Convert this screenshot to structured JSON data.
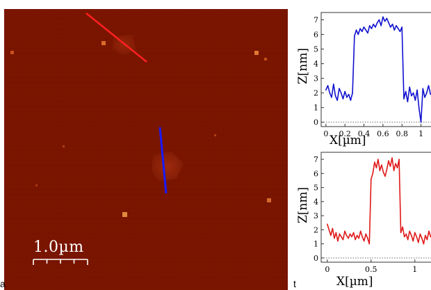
{
  "image": {
    "scale_bar_label": "1.0µm",
    "profile_line_colors": {
      "top": "#ff2020",
      "middle": "#1a1aff"
    }
  },
  "corner_text": {
    "left": "a",
    "right": "t"
  },
  "chart_data": [
    {
      "type": "line",
      "title": "",
      "xlabel": "X[µm]",
      "ylabel": "Z[nm]",
      "xlim": [
        -0.05,
        1.12
      ],
      "ylim": [
        -0.3,
        7.5
      ],
      "xticks": [
        0,
        0.2,
        0.4,
        0.6,
        0.8,
        1
      ],
      "xtick_labels": [
        "0",
        "0.2",
        "0.4",
        "0.6",
        "0.8",
        "1"
      ],
      "yticks": [
        0,
        1,
        2,
        3,
        4,
        5,
        6,
        7
      ],
      "ytick_labels": [
        "0",
        "1",
        "2",
        "3",
        "4",
        "5",
        "6",
        "7"
      ],
      "color": "#1010d0",
      "x": [
        0.0,
        0.02,
        0.04,
        0.06,
        0.08,
        0.1,
        0.12,
        0.14,
        0.16,
        0.18,
        0.2,
        0.22,
        0.24,
        0.26,
        0.28,
        0.3,
        0.32,
        0.34,
        0.36,
        0.38,
        0.4,
        0.42,
        0.44,
        0.46,
        0.48,
        0.5,
        0.52,
        0.54,
        0.56,
        0.58,
        0.6,
        0.62,
        0.64,
        0.66,
        0.68,
        0.7,
        0.72,
        0.74,
        0.76,
        0.78,
        0.8,
        0.82,
        0.84,
        0.86,
        0.88,
        0.9,
        0.92,
        0.94,
        0.96,
        0.98,
        1.0,
        1.02,
        1.04,
        1.06,
        1.08,
        1.1
      ],
      "y": [
        2.2,
        2.5,
        2.0,
        1.7,
        2.6,
        1.8,
        1.5,
        2.3,
        2.0,
        1.6,
        2.1,
        1.7,
        1.9,
        1.5,
        2.0,
        5.9,
        6.3,
        6.0,
        6.4,
        6.2,
        6.5,
        6.3,
        6.1,
        6.6,
        6.4,
        6.7,
        6.5,
        6.8,
        7.0,
        6.6,
        7.2,
        6.9,
        7.1,
        6.8,
        6.5,
        6.7,
        6.3,
        6.6,
        6.4,
        6.2,
        6.5,
        1.6,
        2.1,
        1.4,
        2.4,
        1.8,
        2.0,
        1.5,
        2.2,
        0.9,
        0.0,
        2.3,
        1.7,
        2.0,
        2.5,
        1.9
      ]
    },
    {
      "type": "line",
      "title": "",
      "xlabel": "X[µm]",
      "ylabel": "Z[nm]",
      "xlim": [
        -0.07,
        1.2
      ],
      "ylim": [
        -0.3,
        7.5
      ],
      "xticks": [
        0,
        0.5,
        1
      ],
      "xtick_labels": [
        "0",
        "0.5",
        "1"
      ],
      "yticks": [
        0,
        1,
        2,
        3,
        4,
        5,
        6,
        7
      ],
      "ytick_labels": [
        "0",
        "1",
        "2",
        "3",
        "4",
        "5",
        "6",
        "7"
      ],
      "color": "#e01818",
      "x": [
        0.0,
        0.02,
        0.04,
        0.06,
        0.08,
        0.1,
        0.12,
        0.14,
        0.16,
        0.18,
        0.2,
        0.22,
        0.24,
        0.26,
        0.28,
        0.3,
        0.32,
        0.34,
        0.36,
        0.38,
        0.4,
        0.42,
        0.44,
        0.46,
        0.48,
        0.5,
        0.52,
        0.54,
        0.56,
        0.58,
        0.6,
        0.62,
        0.64,
        0.66,
        0.68,
        0.7,
        0.72,
        0.74,
        0.76,
        0.78,
        0.8,
        0.82,
        0.84,
        0.86,
        0.88,
        0.9,
        0.92,
        0.94,
        0.96,
        0.98,
        1.0,
        1.02,
        1.04,
        1.06,
        1.08,
        1.1,
        1.12,
        1.14,
        1.16,
        1.18
      ],
      "y": [
        2.4,
        2.0,
        1.6,
        2.1,
        1.4,
        1.8,
        1.2,
        1.7,
        1.5,
        1.3,
        1.9,
        1.6,
        1.4,
        1.7,
        1.5,
        1.8,
        1.3,
        1.6,
        1.4,
        1.9,
        1.5,
        1.2,
        1.7,
        1.4,
        1.0,
        5.6,
        6.0,
        6.8,
        6.4,
        7.0,
        6.2,
        6.6,
        6.1,
        5.8,
        6.3,
        6.9,
        6.5,
        7.1,
        6.2,
        6.7,
        6.4,
        7.0,
        1.8,
        2.2,
        1.5,
        1.7,
        1.3,
        1.9,
        1.6,
        1.2,
        1.8,
        1.5,
        1.1,
        1.7,
        1.4,
        1.0,
        1.6,
        1.3,
        1.9,
        1.5
      ]
    }
  ]
}
